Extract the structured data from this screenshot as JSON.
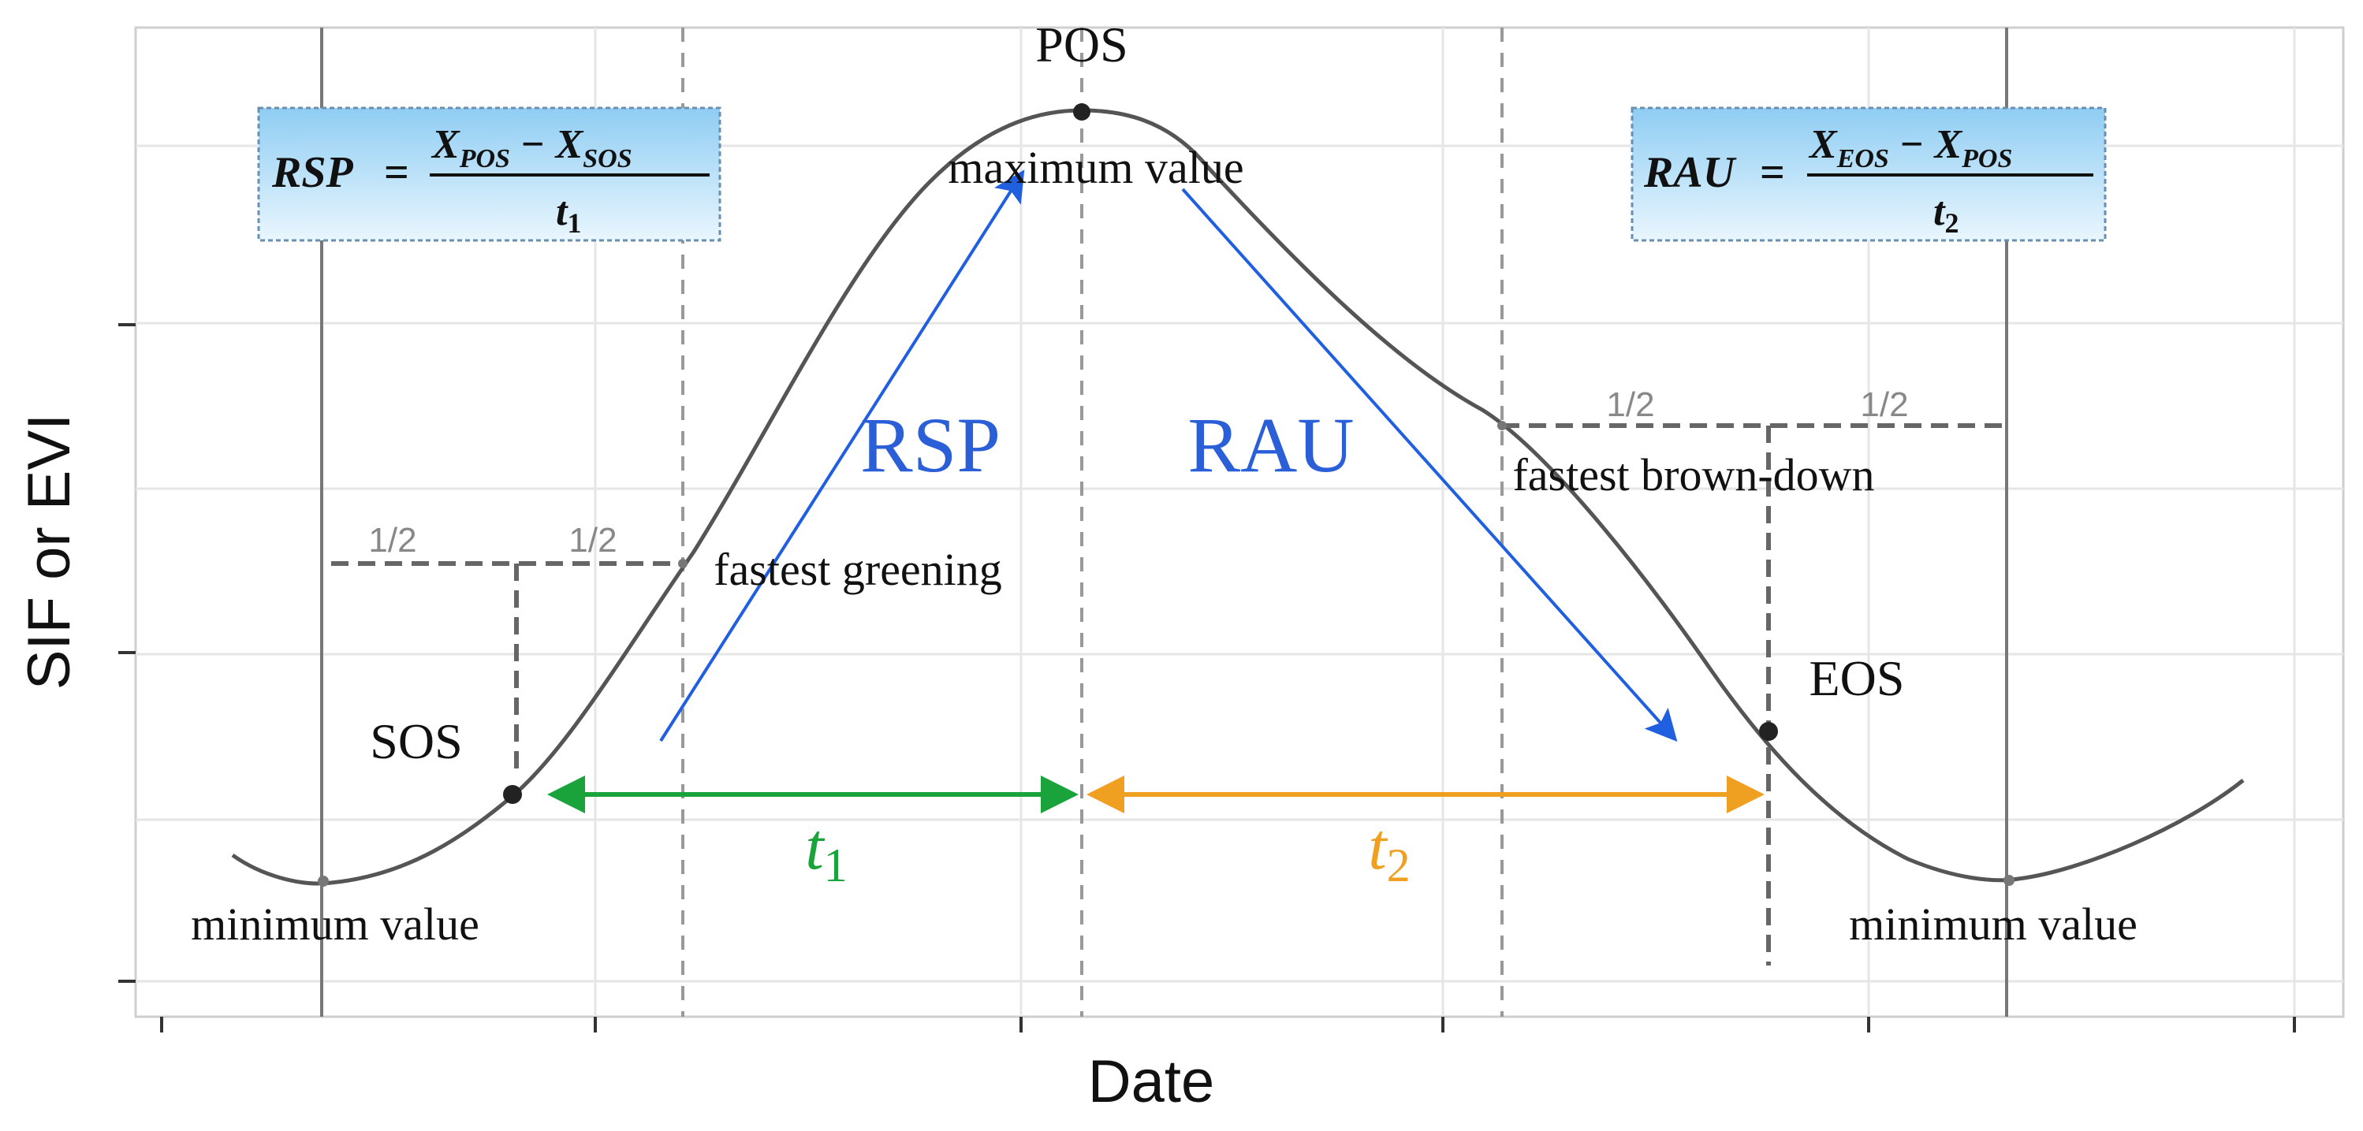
{
  "axes": {
    "xlabel": "Date",
    "ylabel": "SIF or EVI"
  },
  "points": {
    "pos": "POS",
    "sos": "SOS",
    "eos": "EOS"
  },
  "annotations": {
    "maximum_value": "maximum value",
    "minimum_value_left": "minimum value",
    "minimum_value_right": "minimum value",
    "fastest_greening": "fastest greening",
    "fastest_browndown": "fastest brown-down",
    "rsp_label": "RSP",
    "rau_label": "RAU",
    "half_1": "1/2",
    "half_2": "1/2",
    "half_3": "1/2",
    "half_4": "1/2"
  },
  "durations": {
    "t1_main": "t",
    "t1_sub": "1",
    "t2_main": "t",
    "t2_sub": "2"
  },
  "formulas": {
    "rsp": {
      "lhs": "RSP",
      "eq": "=",
      "num_x1": "X",
      "num_s1": "POS",
      "minus": "−",
      "num_x2": "X",
      "num_s2": "SOS",
      "den_t": "t",
      "den_s": "1"
    },
    "rau": {
      "lhs": "RAU",
      "eq": "=",
      "num_x1": "X",
      "num_s1": "EOS",
      "minus": "−",
      "num_x2": "X",
      "num_s2": "POS",
      "den_t": "t",
      "den_s": "2"
    }
  },
  "colors": {
    "curve": "#555555",
    "dashed": "#666666",
    "blue_arrow": "#1f5fe0",
    "blue_text": "#2a5fd8",
    "green": "#1aa33b",
    "orange": "#f0a020",
    "formula_box_top": "#a9d8f5",
    "formula_box_bottom": "#e6f4fd",
    "grid": "#e3e3e3"
  }
}
